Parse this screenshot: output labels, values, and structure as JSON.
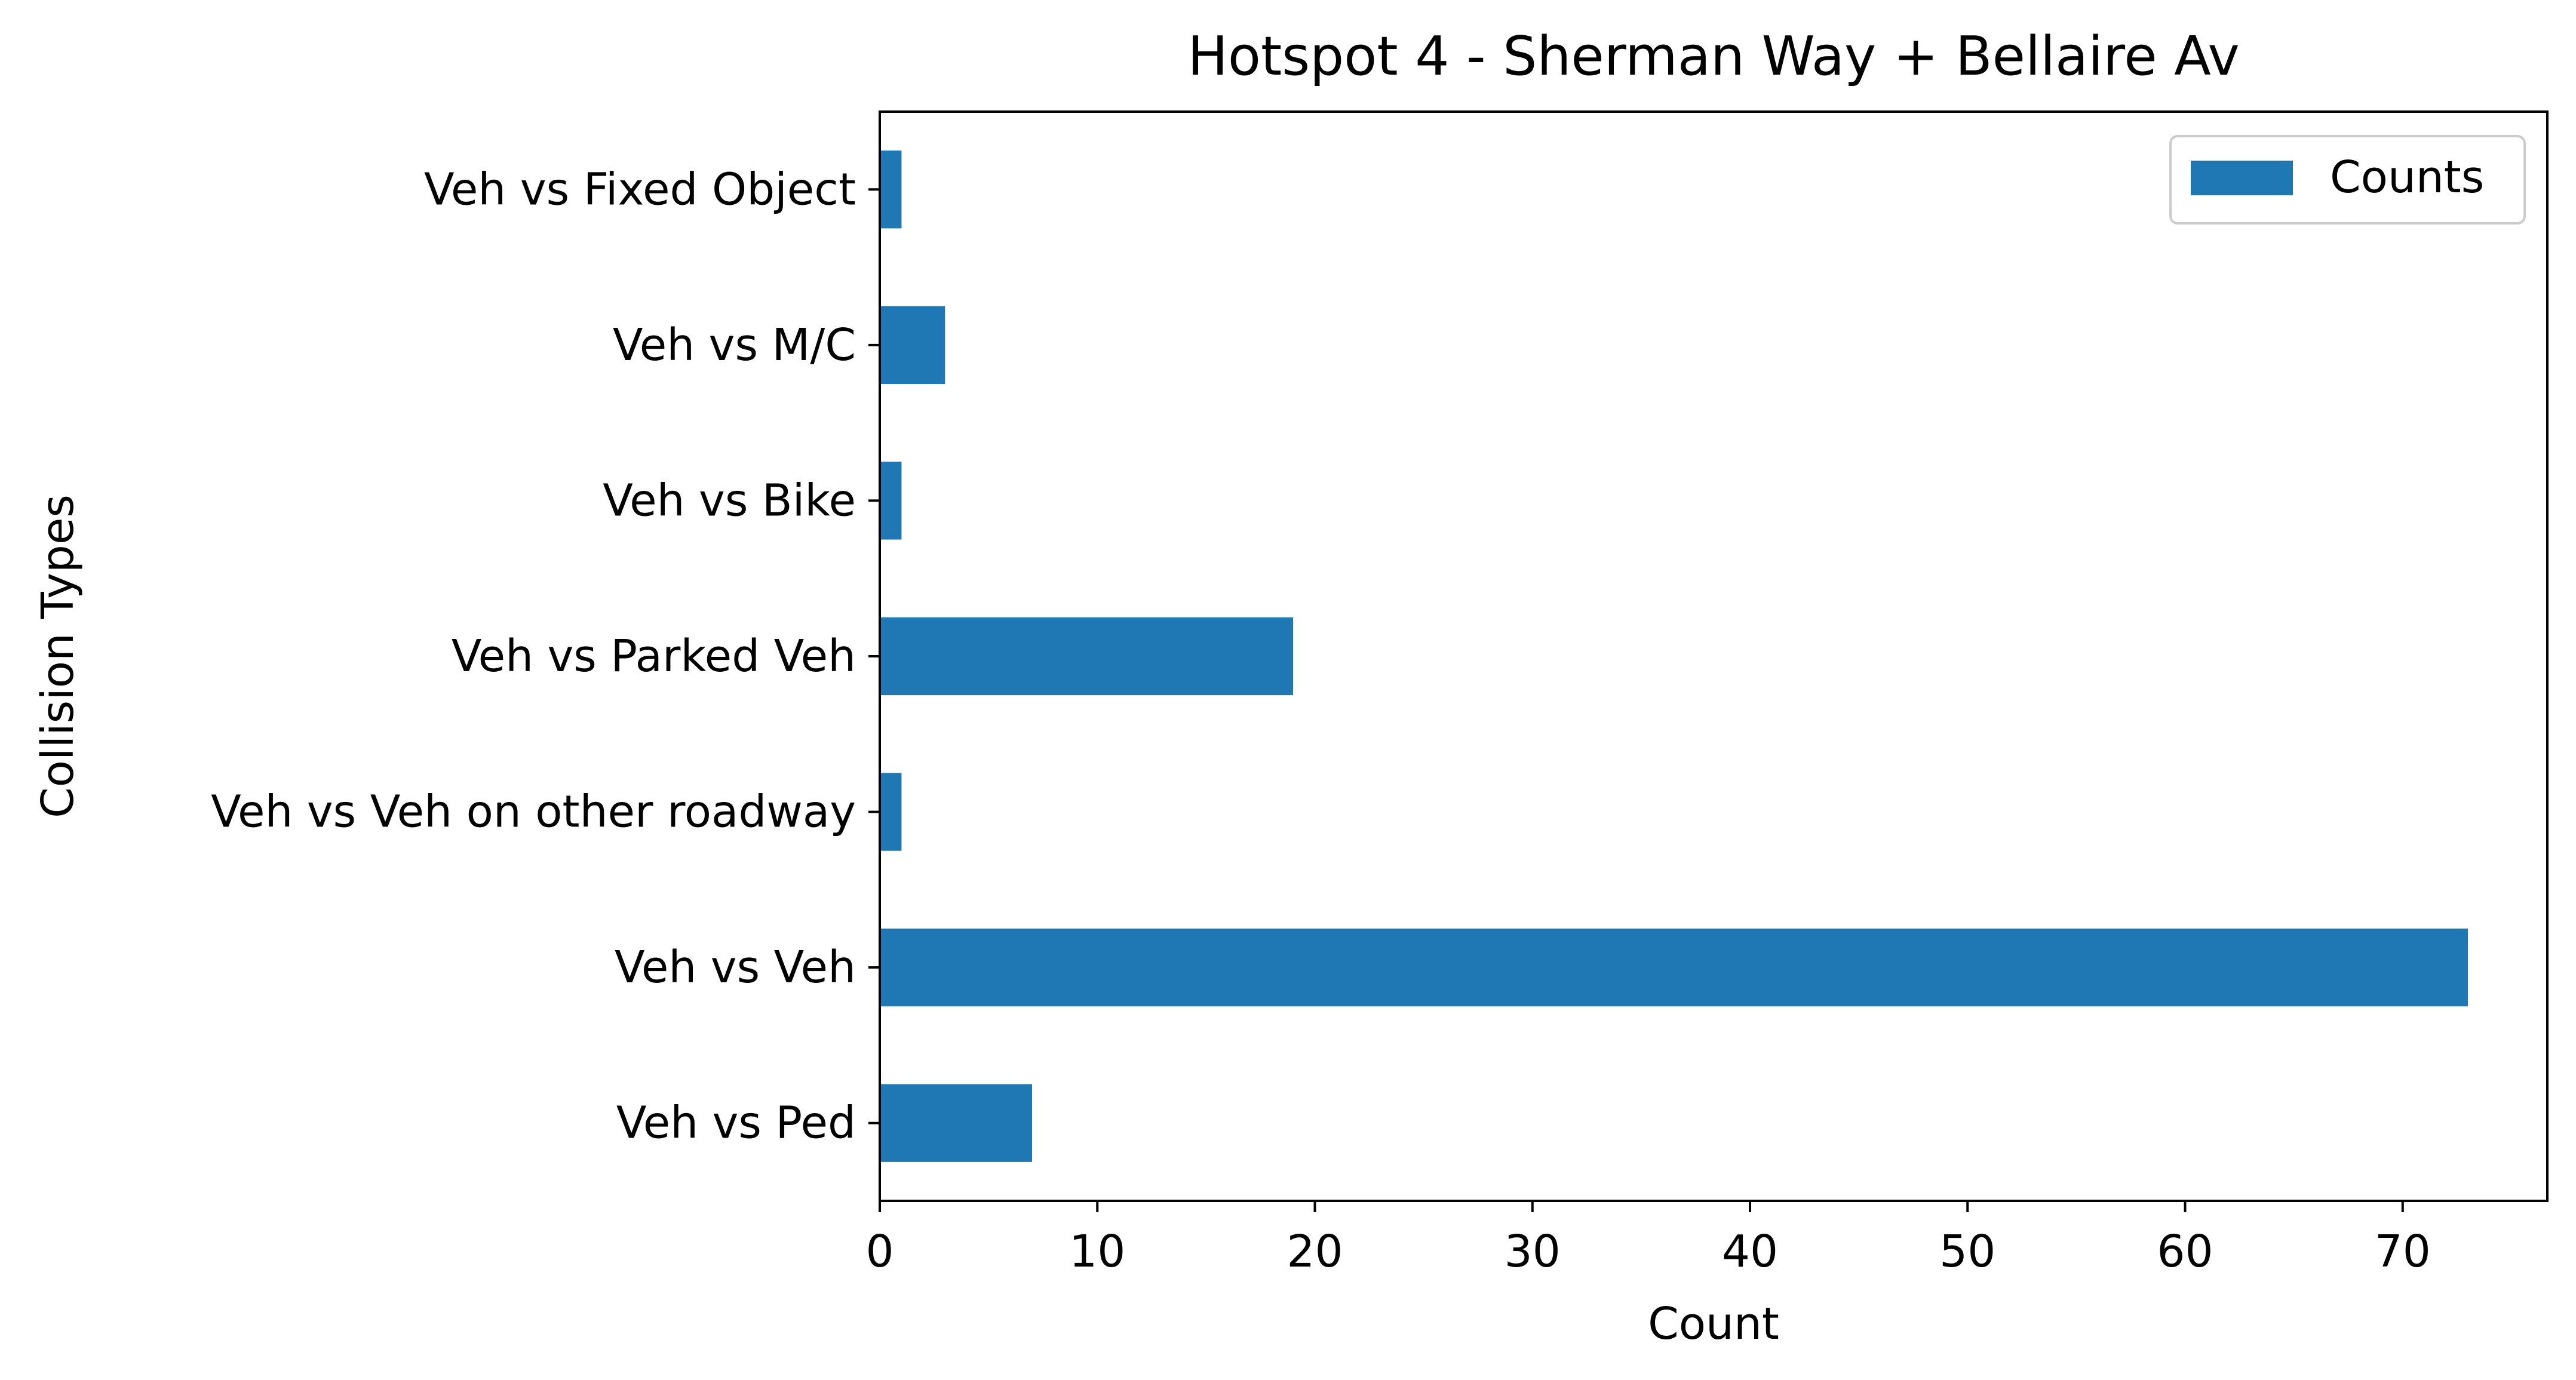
{
  "chart_data": {
    "type": "bar",
    "orientation": "horizontal",
    "title": "Hotspot 4 - Sherman Way + Bellaire Av",
    "xlabel": "Count",
    "ylabel": "Collision Types",
    "categories": [
      "Veh vs Fixed Object",
      "Veh vs M/C",
      "Veh vs Bike",
      "Veh vs Parked Veh",
      "Veh vs Veh on other roadway",
      "Veh vs Veh",
      "Veh vs Ped"
    ],
    "series": [
      {
        "name": "Counts",
        "values": [
          1,
          3,
          1,
          19,
          1,
          73,
          7
        ],
        "color": "#1f77b4"
      }
    ],
    "xlim": [
      0,
      76.65
    ],
    "xticks": [
      0,
      10,
      20,
      30,
      40,
      50,
      60,
      70
    ],
    "grid": false,
    "legend_position": "top-right"
  }
}
